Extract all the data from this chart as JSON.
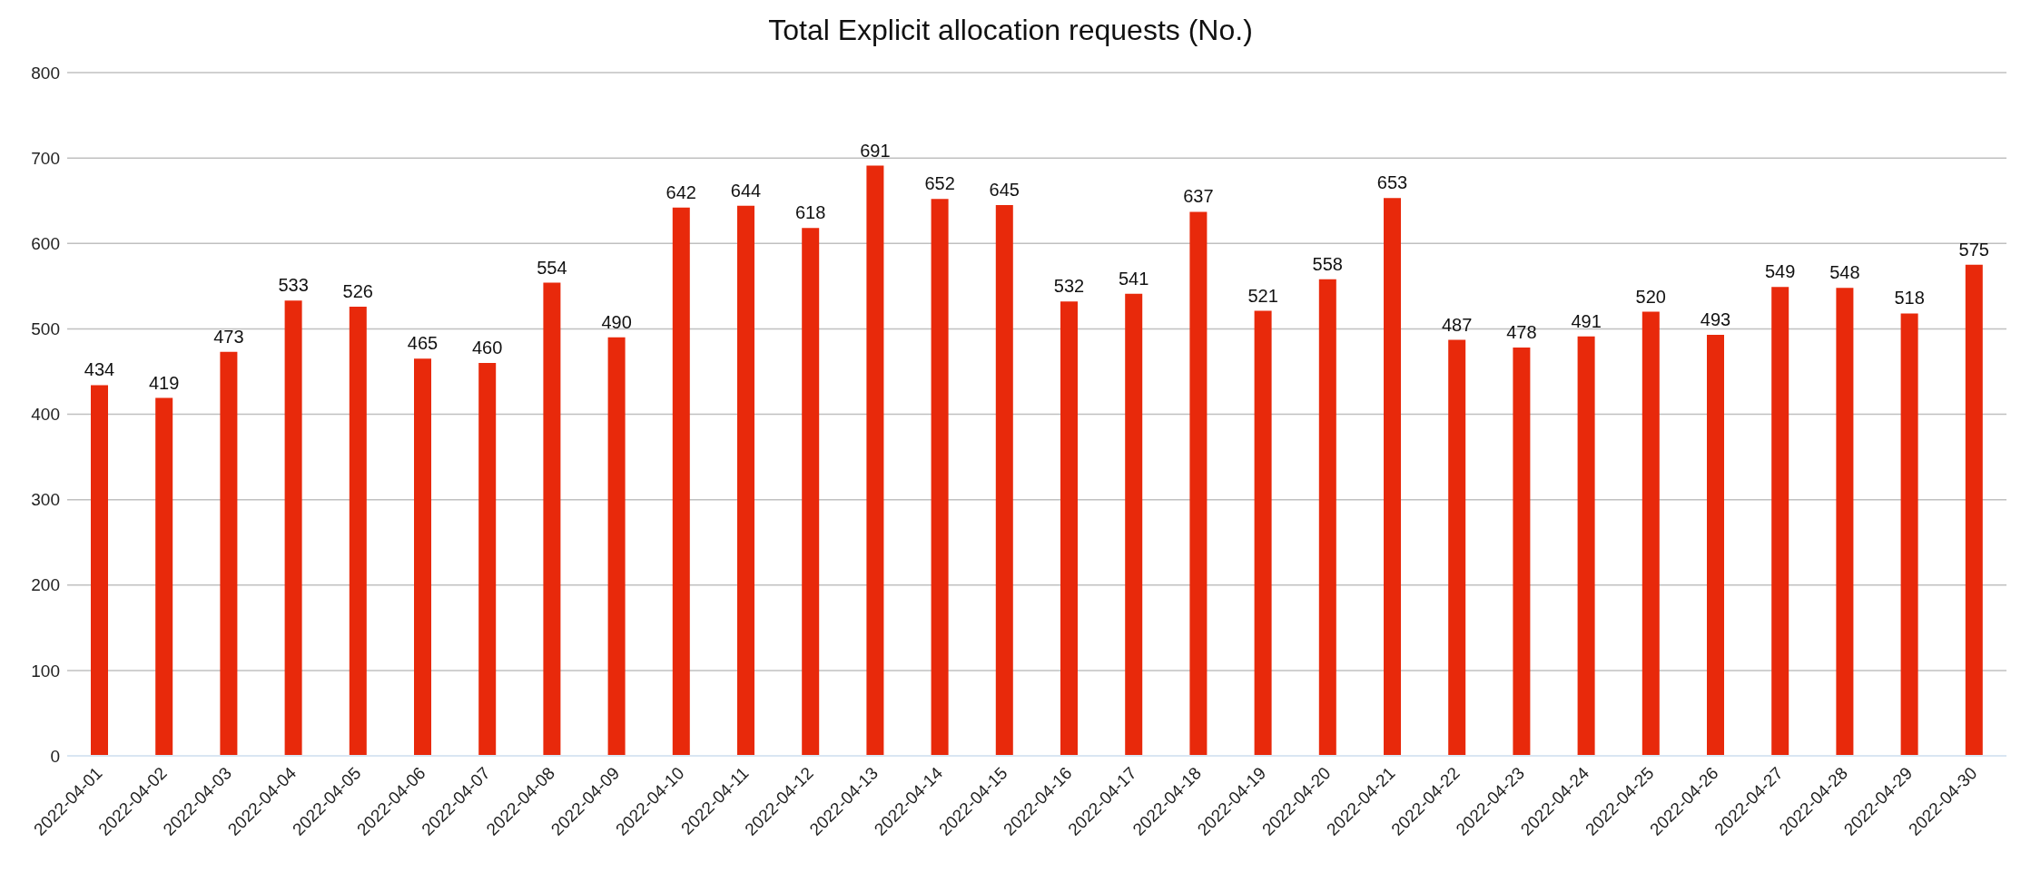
{
  "chart_data": {
    "type": "bar",
    "title": "Total Explicit allocation requests (No.)",
    "categories": [
      "2022-04-01",
      "2022-04-02",
      "2022-04-03",
      "2022-04-04",
      "2022-04-05",
      "2022-04-06",
      "2022-04-07",
      "2022-04-08",
      "2022-04-09",
      "2022-04-10",
      "2022-04-11",
      "2022-04-12",
      "2022-04-13",
      "2022-04-14",
      "2022-04-15",
      "2022-04-16",
      "2022-04-17",
      "2022-04-18",
      "2022-04-19",
      "2022-04-20",
      "2022-04-21",
      "2022-04-22",
      "2022-04-23",
      "2022-04-24",
      "2022-04-25",
      "2022-04-26",
      "2022-04-27",
      "2022-04-28",
      "2022-04-29",
      "2022-04-30"
    ],
    "values": [
      434,
      419,
      473,
      533,
      526,
      465,
      460,
      554,
      490,
      642,
      644,
      618,
      691,
      652,
      645,
      532,
      541,
      637,
      521,
      558,
      653,
      487,
      478,
      491,
      520,
      493,
      549,
      548,
      518,
      575
    ],
    "color": "#e8290b",
    "ylim": [
      0,
      800
    ],
    "yticks": [
      0,
      100,
      200,
      300,
      400,
      500,
      600,
      700,
      800
    ],
    "grid": "y",
    "data_labels": true
  }
}
